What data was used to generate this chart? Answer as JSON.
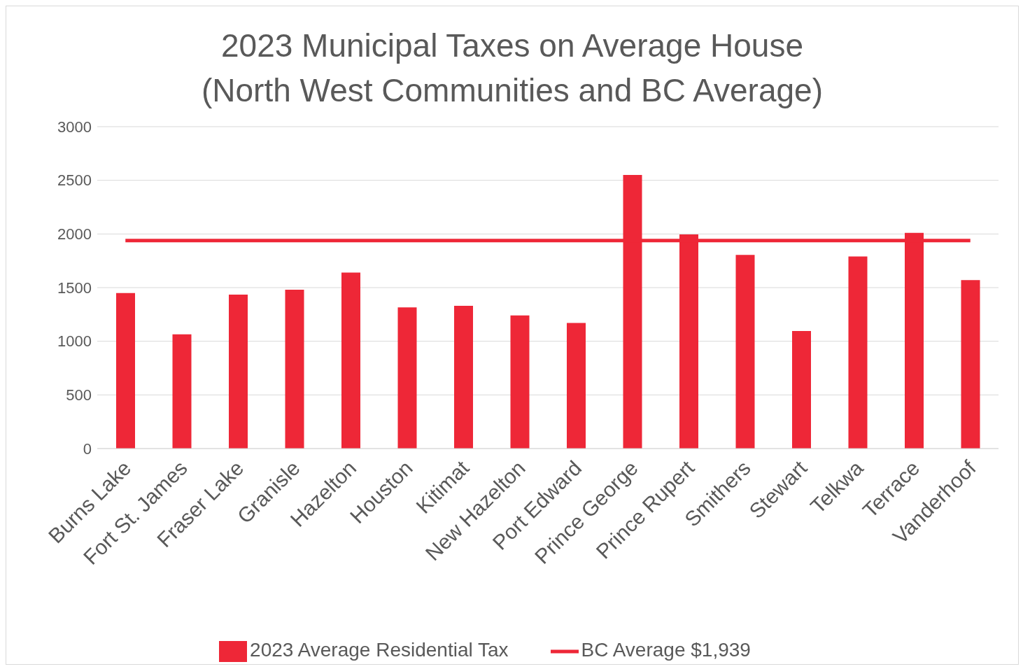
{
  "chart_data": {
    "type": "bar",
    "title": "2023 Municipal Taxes on Average House\n(North West Communities and BC Average)",
    "categories": [
      "Burns Lake",
      "Fort St. James",
      "Fraser Lake",
      "Granisle",
      "Hazelton",
      "Houston",
      "Kitimat",
      "New Hazelton",
      "Port Edward",
      "Prince George",
      "Prince Rupert",
      "Smithers",
      "Stewart",
      "Telkwa",
      "Terrace",
      "Vanderhoof"
    ],
    "series": [
      {
        "name": "2023 Average Residential Tax",
        "color": "#ee2737",
        "values": [
          1450,
          1065,
          1435,
          1480,
          1640,
          1315,
          1330,
          1240,
          1170,
          2550,
          1995,
          1805,
          1095,
          1790,
          2010,
          1570
        ]
      },
      {
        "name": "BC Average $1,939",
        "type": "line",
        "color": "#ee2737",
        "values": [
          1939,
          1939,
          1939,
          1939,
          1939,
          1939,
          1939,
          1939,
          1939,
          1939,
          1939,
          1939,
          1939,
          1939,
          1939,
          1939
        ]
      }
    ],
    "ylim": [
      0,
      3000
    ],
    "yticks": [
      0,
      500,
      1000,
      1500,
      2000,
      2500,
      3000
    ],
    "grid": "y",
    "legend": "bottom"
  }
}
